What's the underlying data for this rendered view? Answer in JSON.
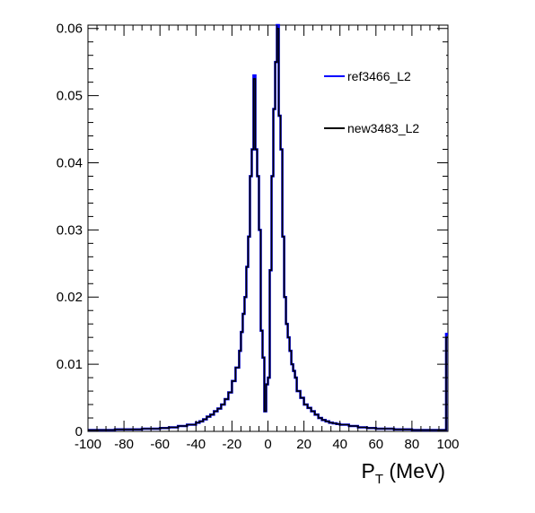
{
  "chart_data": {
    "type": "line",
    "title": "",
    "xlabel": "P",
    "xlabel_sub": "T",
    "xlabel_unit": " (MeV)",
    "ylabel": "",
    "xlim": [
      -100,
      100
    ],
    "ylim": [
      0,
      0.0605
    ],
    "grid": false,
    "legend_position": "top-right",
    "x_ticks": [
      -100,
      -80,
      -60,
      -40,
      -20,
      0,
      20,
      40,
      60,
      80,
      100
    ],
    "y_ticks": [
      0,
      0.01,
      0.02,
      0.03,
      0.04,
      0.05,
      0.06
    ],
    "x_tick_labels": [
      "-100",
      "-80",
      "-60",
      "-40",
      "-20",
      "0",
      "20",
      "40",
      "60",
      "80",
      "100"
    ],
    "y_tick_labels": [
      "0",
      "0.01",
      "0.02",
      "0.03",
      "0.04",
      "0.05",
      "0.06"
    ],
    "x": [
      -100,
      -95,
      -90,
      -85,
      -80,
      -75,
      -70,
      -65,
      -60,
      -55,
      -50,
      -45,
      -40,
      -38,
      -36,
      -34,
      -32,
      -30,
      -28,
      -26,
      -24,
      -22,
      -20,
      -18,
      -16,
      -15,
      -14,
      -13,
      -12,
      -11,
      -10,
      -9,
      -8,
      -7,
      -6,
      -5,
      -4,
      -3,
      -2,
      -1,
      0,
      1,
      2,
      3,
      4,
      5,
      6,
      7,
      8,
      9,
      10,
      11,
      12,
      13,
      14,
      15,
      16,
      18,
      20,
      22,
      24,
      26,
      28,
      30,
      32,
      34,
      36,
      38,
      40,
      45,
      50,
      55,
      60,
      65,
      70,
      75,
      80,
      85,
      90,
      95,
      99
    ],
    "series": [
      {
        "name": "ref3466_L2",
        "color": "#0000ff",
        "values": [
          0.0002,
          0.0002,
          0.0002,
          0.0003,
          0.0003,
          0.0003,
          0.0004,
          0.0004,
          0.0005,
          0.0006,
          0.0008,
          0.001,
          0.0013,
          0.0015,
          0.0018,
          0.0022,
          0.0025,
          0.003,
          0.0034,
          0.004,
          0.0048,
          0.0058,
          0.0075,
          0.0095,
          0.012,
          0.0148,
          0.0175,
          0.02,
          0.0245,
          0.029,
          0.038,
          0.042,
          0.053,
          0.042,
          0.038,
          0.03,
          0.015,
          0.011,
          0.003,
          0.007,
          0.008,
          0.024,
          0.038,
          0.048,
          0.055,
          0.0605,
          0.047,
          0.042,
          0.029,
          0.02,
          0.016,
          0.014,
          0.012,
          0.01,
          0.009,
          0.008,
          0.006,
          0.005,
          0.004,
          0.0035,
          0.003,
          0.0025,
          0.002,
          0.0017,
          0.0015,
          0.0013,
          0.0012,
          0.0011,
          0.001,
          0.0008,
          0.0006,
          0.0005,
          0.0004,
          0.0004,
          0.0003,
          0.0003,
          0.0002,
          0.0002,
          0.0002,
          0.0002,
          0.0145
        ]
      },
      {
        "name": "new3483_L2",
        "color": "#000000",
        "values": [
          0.0002,
          0.0002,
          0.0002,
          0.0003,
          0.0003,
          0.0003,
          0.0004,
          0.0004,
          0.0005,
          0.0006,
          0.0008,
          0.001,
          0.0013,
          0.0015,
          0.0018,
          0.0022,
          0.0025,
          0.003,
          0.0034,
          0.004,
          0.0048,
          0.0058,
          0.0075,
          0.0095,
          0.012,
          0.0148,
          0.0175,
          0.02,
          0.0245,
          0.029,
          0.038,
          0.042,
          0.0525,
          0.042,
          0.038,
          0.03,
          0.015,
          0.011,
          0.003,
          0.007,
          0.008,
          0.024,
          0.038,
          0.048,
          0.055,
          0.06,
          0.047,
          0.042,
          0.029,
          0.02,
          0.016,
          0.014,
          0.012,
          0.01,
          0.009,
          0.008,
          0.006,
          0.005,
          0.004,
          0.0035,
          0.003,
          0.0025,
          0.002,
          0.0017,
          0.0015,
          0.0013,
          0.0012,
          0.0011,
          0.001,
          0.0008,
          0.0006,
          0.0005,
          0.0004,
          0.0004,
          0.0003,
          0.0003,
          0.0002,
          0.0002,
          0.0002,
          0.0002,
          0.014
        ]
      }
    ]
  }
}
